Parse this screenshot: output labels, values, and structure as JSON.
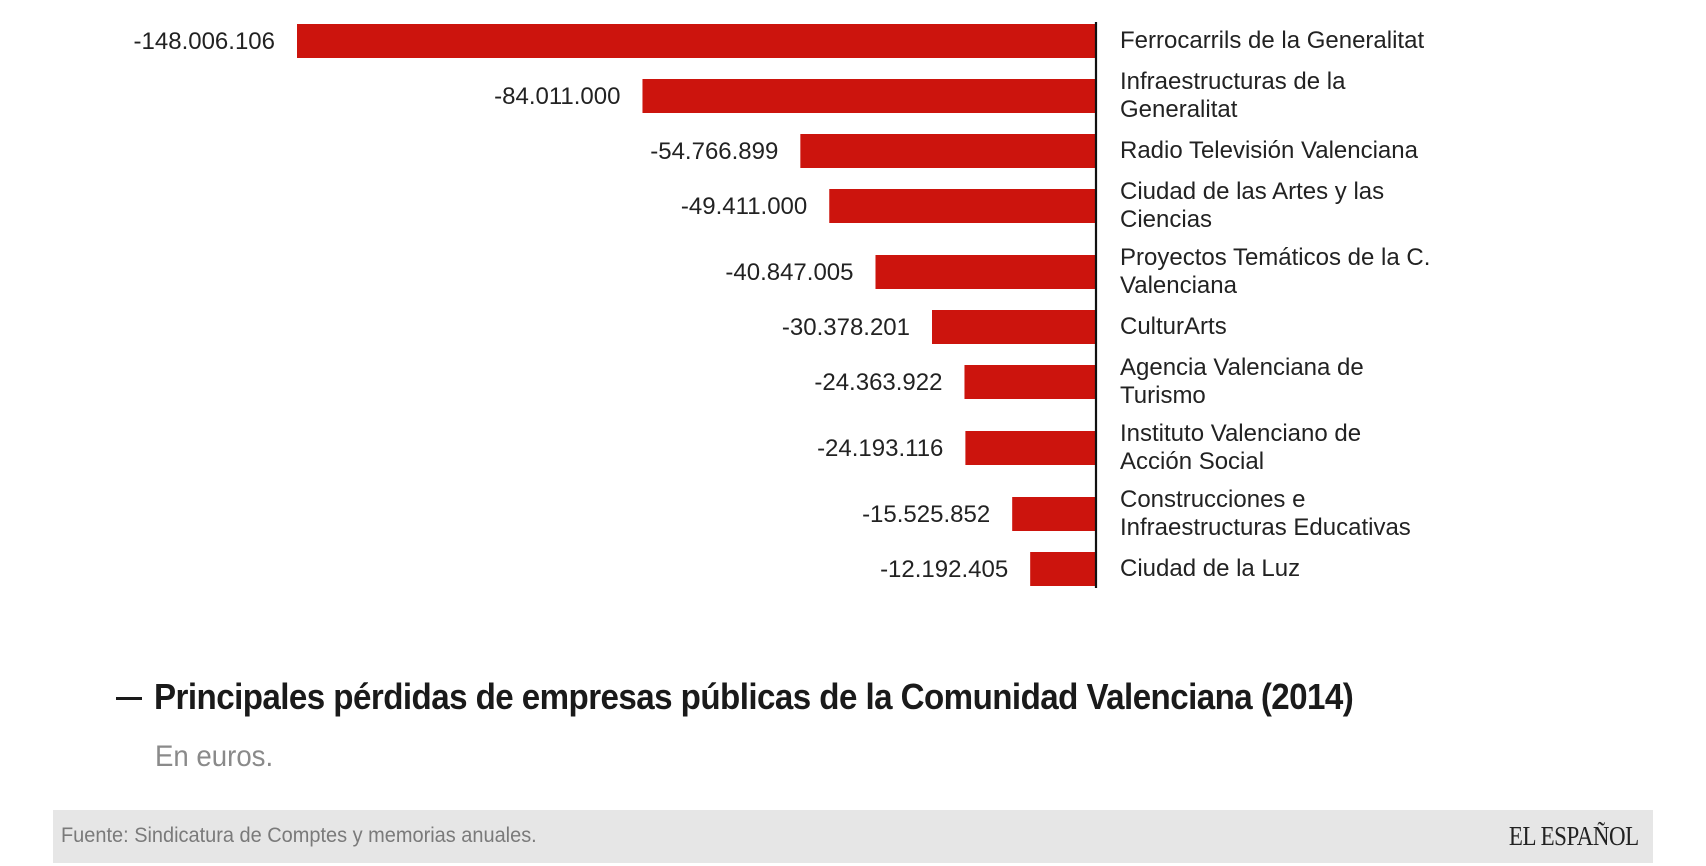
{
  "chart_data": {
    "type": "bar",
    "orientation": "horizontal",
    "title": "Principales pérdidas de empresas públicas de la Comunidad Valenciana (2014)",
    "subtitle": "En euros.",
    "xlabel": "",
    "ylabel": "",
    "unit": "euros",
    "grid": false,
    "legend": "none",
    "bar_color": "#cc140d",
    "categories": [
      "Ferrocarrils de la Generalitat",
      "Infraestructuras de la Generalitat",
      "Radio Televisión Valenciana",
      "Ciudad de las Artes y las Ciencias",
      "Proyectos Temáticos de la C. Valenciana",
      "CulturArts",
      "Agencia Valenciana de Turismo",
      "Instituto Valenciano de Acción Social",
      "Construcciones e Infraestructuras Educativas",
      "Ciudad de la Luz"
    ],
    "category_lines": [
      [
        "Ferrocarrils de la Generalitat"
      ],
      [
        "Infraestructuras de la",
        "Generalitat"
      ],
      [
        "Radio Televisión Valenciana"
      ],
      [
        "Ciudad de las Artes y las",
        "Ciencias"
      ],
      [
        "Proyectos Temáticos de la C.",
        "Valenciana"
      ],
      [
        "CulturArts"
      ],
      [
        "Agencia Valenciana de",
        "Turismo"
      ],
      [
        "Instituto Valenciano de",
        "Acción Social"
      ],
      [
        "Construcciones e",
        "Infraestructuras Educativas"
      ],
      [
        "Ciudad de la Luz"
      ]
    ],
    "values": [
      -148006106,
      -84011000,
      -54766899,
      -49411000,
      -40847005,
      -30378201,
      -24363922,
      -24193116,
      -15525852,
      -12192405
    ],
    "value_labels": [
      "-148.006.106",
      "-84.011.000",
      "-54.766.899",
      "-49.411.000",
      "-40.847.005",
      "-30.378.201",
      "-24.363.922",
      "-24.193.116",
      "-15.525.852",
      "-12.192.405"
    ],
    "xlim": [
      -148006106,
      0
    ]
  },
  "header": {
    "title": "Principales pérdidas de empresas públicas de la Comunidad Valenciana (2014)",
    "subtitle": "En euros."
  },
  "footer": {
    "source": "Fuente: Sindicatura de Comptes y memorias anuales.",
    "brand": "EL ESPAÑOL"
  }
}
